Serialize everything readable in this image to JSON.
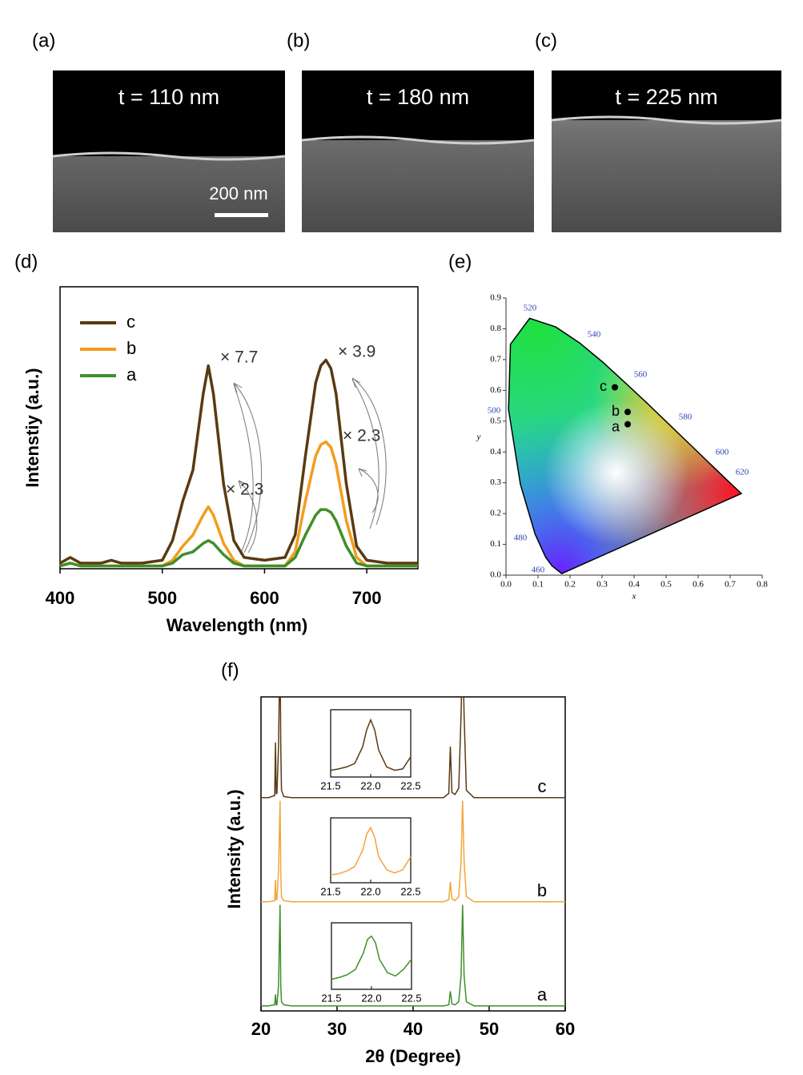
{
  "chart_data": [
    {
      "type": "image",
      "panel_labels": [
        "(a)",
        "(b)",
        "(c)"
      ],
      "labels": [
        "t = 110 nm",
        "t = 180 nm",
        "t = 225 nm"
      ],
      "scale_bar": "200 nm"
    },
    {
      "type": "line",
      "panel_label": "(d)",
      "xlabel": "Wavelength (nm)",
      "ylabel": "Intenstiy (a.u.)",
      "xlim": [
        400,
        750
      ],
      "xticks": [
        400,
        500,
        600,
        700
      ],
      "ylim": [
        0,
        1
      ],
      "x": [
        400,
        410,
        420,
        440,
        450,
        460,
        480,
        500,
        510,
        520,
        530,
        540,
        545,
        550,
        560,
        570,
        580,
        600,
        620,
        630,
        640,
        650,
        655,
        660,
        665,
        670,
        680,
        690,
        700,
        720,
        750
      ],
      "series": [
        {
          "name": "c",
          "color": "#5a3a12",
          "values": [
            0.02,
            0.04,
            0.02,
            0.02,
            0.03,
            0.02,
            0.02,
            0.03,
            0.1,
            0.24,
            0.35,
            0.62,
            0.72,
            0.62,
            0.3,
            0.1,
            0.04,
            0.03,
            0.04,
            0.12,
            0.4,
            0.66,
            0.72,
            0.74,
            0.71,
            0.62,
            0.3,
            0.08,
            0.03,
            0.02,
            0.02
          ]
        },
        {
          "name": "b",
          "color": "#f39c1f",
          "values": [
            0.01,
            0.02,
            0.01,
            0.01,
            0.01,
            0.01,
            0.01,
            0.01,
            0.03,
            0.08,
            0.12,
            0.19,
            0.22,
            0.19,
            0.09,
            0.03,
            0.01,
            0.01,
            0.01,
            0.06,
            0.24,
            0.4,
            0.44,
            0.45,
            0.43,
            0.37,
            0.17,
            0.04,
            0.01,
            0.01,
            0.01
          ]
        },
        {
          "name": "a",
          "color": "#3f8f2a",
          "values": [
            0.01,
            0.02,
            0.01,
            0.01,
            0.01,
            0.01,
            0.01,
            0.01,
            0.02,
            0.05,
            0.06,
            0.09,
            0.1,
            0.09,
            0.05,
            0.02,
            0.01,
            0.01,
            0.01,
            0.04,
            0.12,
            0.19,
            0.21,
            0.21,
            0.2,
            0.17,
            0.08,
            0.02,
            0.01,
            0.01,
            0.01
          ]
        }
      ],
      "annotations": [
        "× 7.7",
        "× 2.3",
        "× 3.9",
        "× 2.3"
      ]
    },
    {
      "type": "scatter",
      "panel_label": "(e)",
      "xlabel": "x",
      "ylabel": "y",
      "xlim": [
        0,
        0.8
      ],
      "xticks": [
        {
          "value": 0,
          "label": "0.0"
        },
        0.1,
        0.2,
        0.3,
        0.4,
        0.5,
        0.6,
        0.7,
        0.8
      ],
      "ylim": [
        0,
        0.9
      ],
      "yticks": [
        {
          "value": 0,
          "label": "0.0"
        },
        0.1,
        0.2,
        0.3,
        0.4,
        0.5,
        0.6,
        0.7,
        0.8,
        0.9
      ],
      "x": [
        0.34,
        0.38,
        0.38
      ],
      "values": [
        0.61,
        0.53,
        0.49
      ],
      "labels": [
        "c",
        "b",
        "a"
      ],
      "color": "#000000",
      "wavelength_labels": [
        460,
        480,
        500,
        520,
        540,
        560,
        580,
        600,
        620
      ]
    },
    {
      "type": "xrd",
      "panel_label": "(f)",
      "xlabel": "2θ (Degree)",
      "ylabel": "Intensity (a.u.)",
      "xlim": [
        20,
        60
      ],
      "xticks": [
        20,
        30,
        40,
        50,
        60
      ],
      "ylim": [
        0,
        1
      ],
      "x": [
        20,
        21,
        21.8,
        21.9,
        22.0,
        22.1,
        22.3,
        22.5,
        22.6,
        22.7,
        23,
        24,
        30,
        40,
        44,
        44.7,
        44.9,
        45.1,
        45.5,
        46,
        46.3,
        46.5,
        46.7,
        47,
        48,
        50,
        60
      ],
      "inset_xlim": [
        21.5,
        22.5
      ],
      "inset_xticks": [
        21.5,
        {
          "value": 22,
          "label": "22.0"
        },
        22.5
      ],
      "inset_x": [
        21.5,
        21.6,
        21.7,
        21.8,
        21.9,
        21.95,
        22.0,
        22.05,
        22.1,
        22.2,
        22.3,
        22.4,
        22.5
      ],
      "series": [
        {
          "name": "a",
          "color": "#3f8f2a",
          "values": [
            0.01,
            0.01,
            0.02,
            0.12,
            0.02,
            0.02,
            0.2,
            0.98,
            0.2,
            0.05,
            0.02,
            0.01,
            0.01,
            0.01,
            0.01,
            0.02,
            0.15,
            0.03,
            0.02,
            0.05,
            0.3,
            0.98,
            0.3,
            0.05,
            0.01,
            0.01,
            0.01
          ],
          "inset_values": [
            0.15,
            0.18,
            0.22,
            0.3,
            0.55,
            0.75,
            0.8,
            0.7,
            0.45,
            0.25,
            0.2,
            0.3,
            0.45
          ]
        },
        {
          "name": "b",
          "color": "#f3a53a",
          "values": [
            0.01,
            0.01,
            0.02,
            0.22,
            0.03,
            0.03,
            0.3,
            0.98,
            0.3,
            0.05,
            0.02,
            0.01,
            0.01,
            0.01,
            0.01,
            0.03,
            0.2,
            0.04,
            0.02,
            0.06,
            0.4,
            0.98,
            0.4,
            0.06,
            0.01,
            0.01,
            0.01
          ],
          "inset_values": [
            0.12,
            0.14,
            0.18,
            0.25,
            0.5,
            0.75,
            0.85,
            0.7,
            0.4,
            0.2,
            0.15,
            0.2,
            0.4
          ]
        },
        {
          "name": "c",
          "color": "#5a3a12",
          "values": [
            0.01,
            0.01,
            0.03,
            0.54,
            0.05,
            0.05,
            0.5,
            1.5,
            0.5,
            0.08,
            0.02,
            0.01,
            0.01,
            0.01,
            0.01,
            0.05,
            0.5,
            0.06,
            0.04,
            0.1,
            0.8,
            1.5,
            0.8,
            0.08,
            0.01,
            0.01,
            0.01
          ],
          "inset_values": [
            0.1,
            0.12,
            0.15,
            0.2,
            0.45,
            0.7,
            0.85,
            0.7,
            0.4,
            0.15,
            0.1,
            0.12,
            0.3
          ]
        }
      ]
    }
  ]
}
